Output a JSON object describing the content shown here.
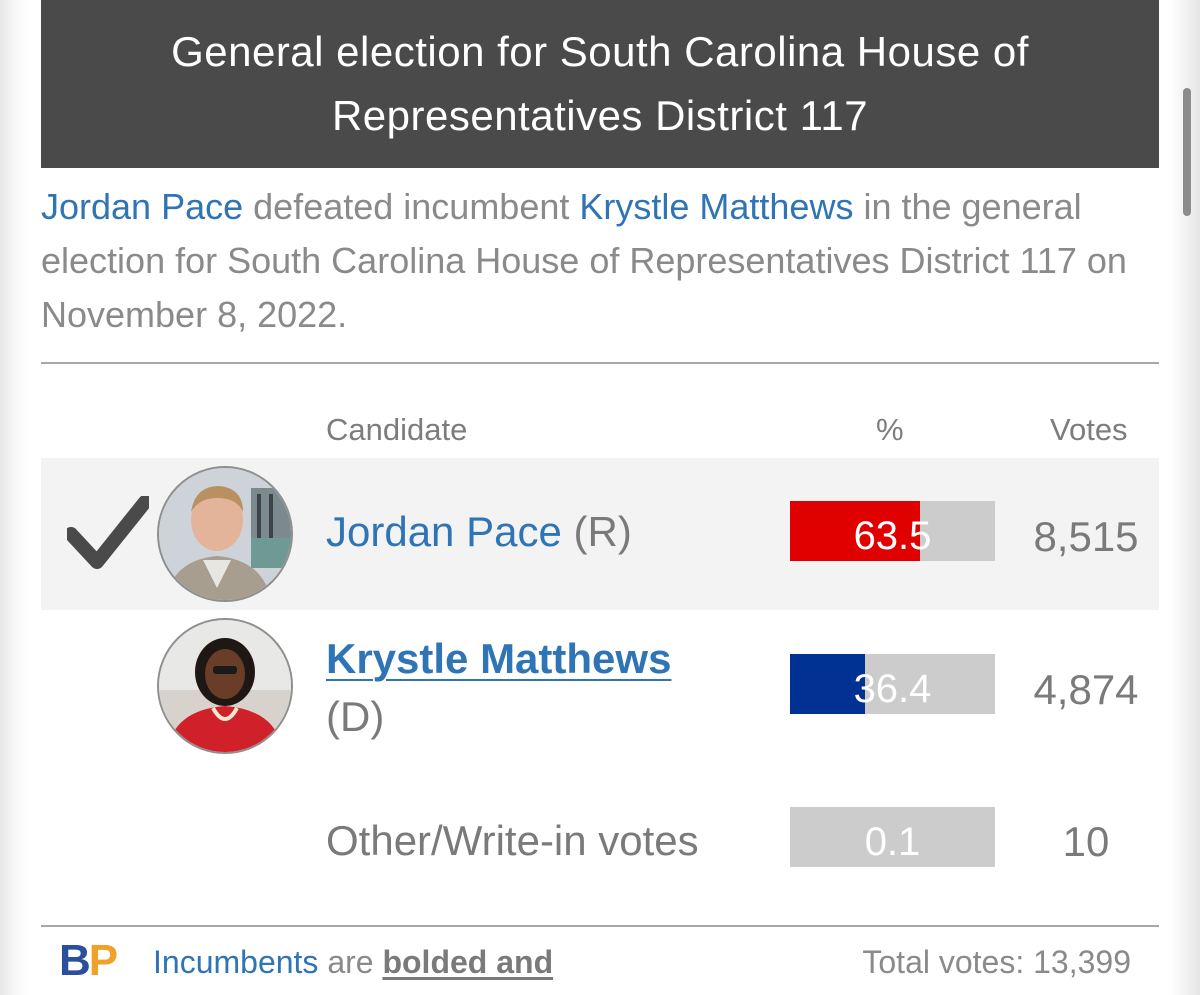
{
  "header": {
    "title": "General election for South Carolina House of Representatives District 117"
  },
  "summary": {
    "winner_name": "Jordan Pace",
    "text_1": " defeated incumbent ",
    "loser_name": "Krystle Matthews",
    "text_2": " in the general election for South Carolina House of Representatives District 117 on November 8, 2022."
  },
  "table": {
    "columns": {
      "candidate": "Candidate",
      "percent": "%",
      "votes": "Votes"
    },
    "rows": [
      {
        "name": "Jordan Pace",
        "party": "(R)",
        "percent": 63.5,
        "percent_label": "63.5",
        "votes": "8,515",
        "color": "#e00000",
        "winner": true
      },
      {
        "name": "Krystle Matthews",
        "party": "(D)",
        "percent": 36.4,
        "percent_label": "36.4",
        "votes": "4,874",
        "color": "#023194",
        "incumbent": true
      },
      {
        "name": "Other/Write-in votes",
        "percent": 0.1,
        "percent_label": "0.1",
        "votes": "10",
        "color": "#cccccc"
      }
    ]
  },
  "footer": {
    "logo_b": "B",
    "logo_p": "P",
    "note_link": "Incumbents",
    "note_text": " are ",
    "note_bold": "bolded and",
    "total": "Total votes: 13,399"
  },
  "icons": {
    "winner_mark": "checkmark-icon"
  }
}
